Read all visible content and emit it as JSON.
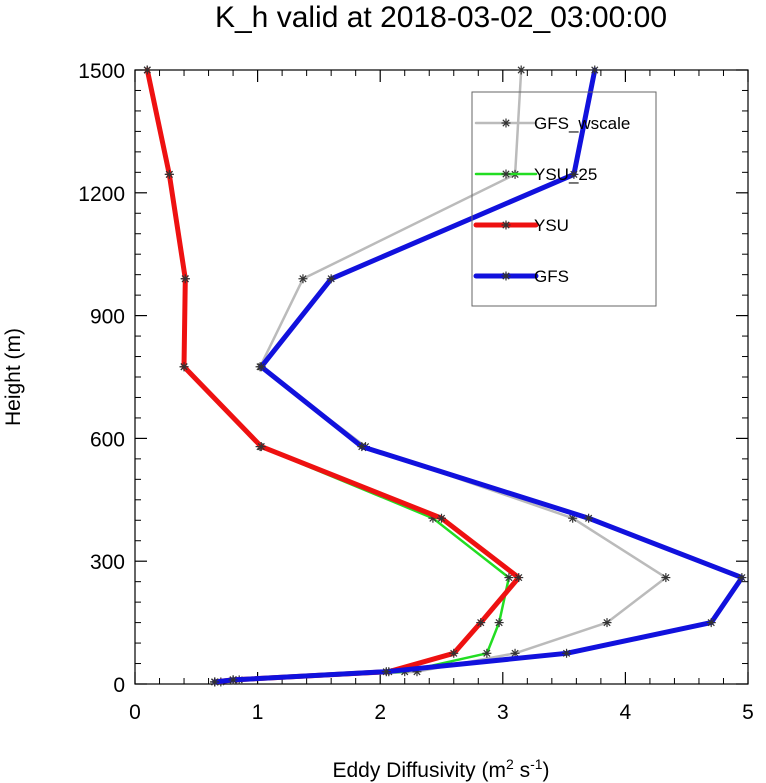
{
  "chart_data": {
    "type": "line",
    "title": "K_h valid at 2018-03-02_03:00:00",
    "xlabel": "Eddy Diffusivity (m",
    "xlabel_sup1": "2",
    "xlabel_mid": " s",
    "xlabel_sup2": "-1",
    "xlabel_end": ")",
    "ylabel": "Height (m)",
    "xlim": [
      0,
      5
    ],
    "ylim": [
      0,
      1500
    ],
    "xticks": [
      "0",
      "1",
      "2",
      "3",
      "4",
      "5"
    ],
    "yticks": [
      "0",
      "300",
      "600",
      "900",
      "1200",
      "1500"
    ],
    "legend_position": "top-right",
    "series": [
      {
        "name": "GFS_wscale",
        "color": "#bbbbbb",
        "line_width": 2.5,
        "marker": "asterisk",
        "x": [
          0.7,
          0.85,
          2.3,
          3.1,
          3.85,
          4.33,
          3.57,
          1.88,
          1.02,
          1.37,
          3.1,
          3.15
        ],
        "y": [
          5,
          10,
          30,
          75,
          150,
          260,
          405,
          580,
          775,
          990,
          1245,
          1500
        ]
      },
      {
        "name": "YSU_25",
        "color": "#22dd22",
        "line_width": 2.5,
        "marker": "asterisk",
        "x": [
          0.65,
          0.8,
          2.2,
          2.87,
          2.97,
          3.05,
          2.43,
          1.02,
          0.4,
          0.41,
          0.28,
          0.1
        ],
        "y": [
          5,
          10,
          30,
          75,
          150,
          260,
          405,
          580,
          775,
          990,
          1245,
          1500
        ]
      },
      {
        "name": "YSU",
        "color": "#ee1111",
        "line_width": 5,
        "marker": "asterisk",
        "x": [
          0.65,
          0.8,
          2.07,
          2.6,
          2.82,
          3.13,
          2.5,
          1.03,
          0.4,
          0.41,
          0.28,
          0.1
        ],
        "y": [
          5,
          10,
          30,
          75,
          150,
          260,
          405,
          580,
          775,
          990,
          1245,
          1500
        ]
      },
      {
        "name": "GFS",
        "color": "#1111dd",
        "line_width": 5,
        "marker": "asterisk",
        "x": [
          0.65,
          0.8,
          2.05,
          3.52,
          4.7,
          4.95,
          3.7,
          1.85,
          1.03,
          1.6,
          3.58,
          3.75
        ],
        "y": [
          5,
          10,
          30,
          75,
          150,
          260,
          405,
          580,
          775,
          990,
          1245,
          1500
        ]
      }
    ]
  }
}
